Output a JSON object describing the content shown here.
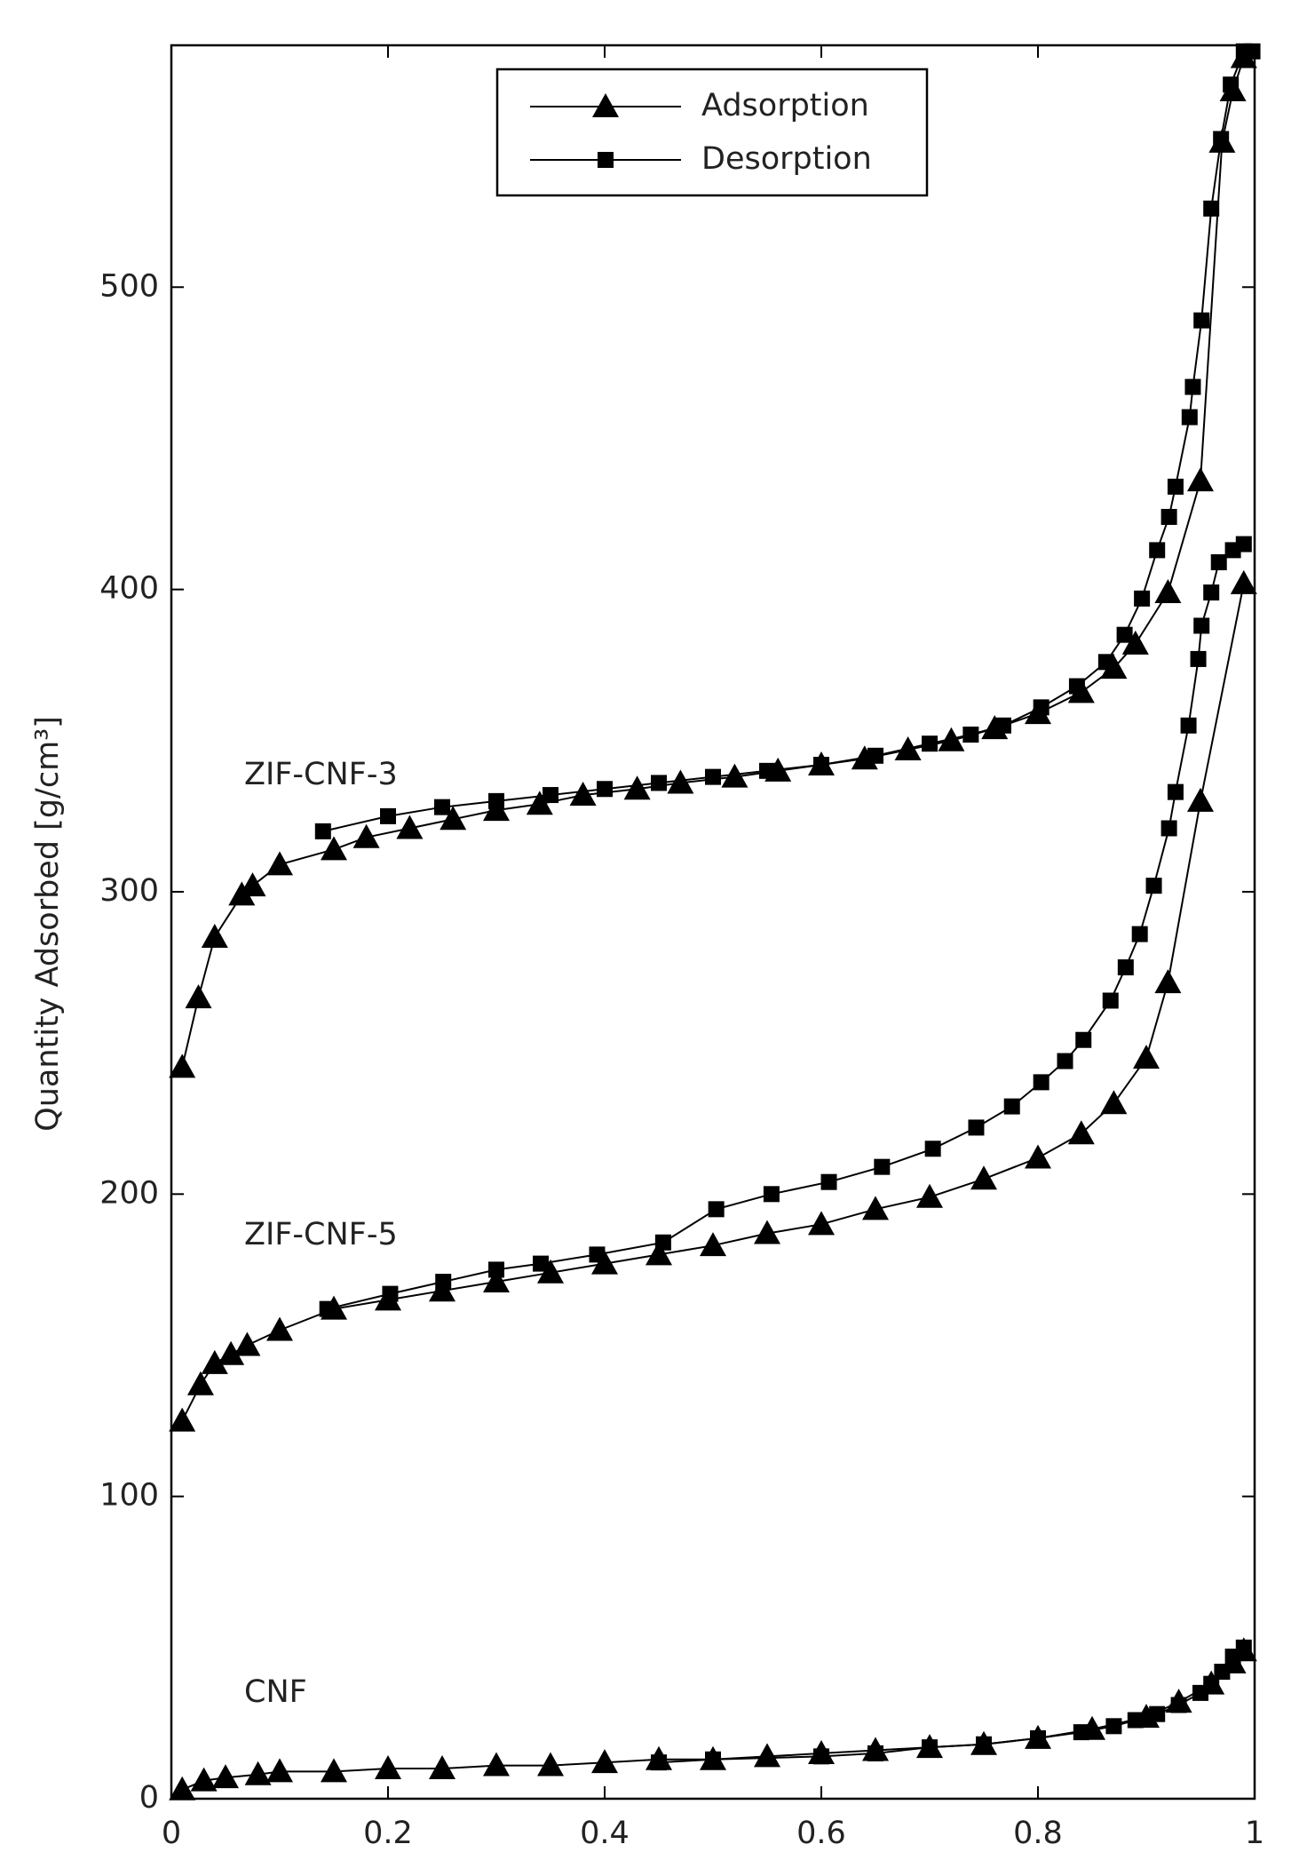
{
  "chart_data": {
    "type": "line",
    "ylabel": "Quantity Adsorbed [g/cm³]",
    "xlim": [
      0,
      1
    ],
    "xticks": [
      0,
      0.2,
      0.4,
      0.6,
      0.8,
      1
    ],
    "ylim": [
      0,
      580
    ],
    "yticks": [
      0,
      100,
      200,
      300,
      400,
      500
    ],
    "color": "#000000",
    "legend_position": "upper center",
    "legend": [
      {
        "name": "Adsorption",
        "marker": "triangle"
      },
      {
        "name": "Desorption",
        "marker": "square"
      }
    ],
    "samples": [
      {
        "label": "ZIF-CNF-3",
        "series": [
          {
            "marker": "triangle",
            "x": [
              0.01,
              0.025,
              0.04,
              0.065,
              0.075,
              0.1,
              0.15,
              0.18,
              0.22,
              0.26,
              0.3,
              0.34,
              0.38,
              0.43,
              0.47,
              0.52,
              0.56,
              0.6,
              0.64,
              0.68,
              0.72,
              0.76,
              0.8,
              0.84,
              0.87,
              0.89,
              0.92,
              0.95,
              0.97,
              0.98,
              0.99
            ],
            "values": [
              242,
              265,
              285,
              299,
              302,
              309,
              314,
              318,
              321,
              324,
              327,
              329,
              332,
              334,
              336,
              338,
              340,
              342,
              344,
              347,
              350,
              354,
              359,
              366,
              374,
              382,
              399,
              436,
              548,
              565,
              576
            ]
          },
          {
            "marker": "square",
            "x": [
              0.998,
              0.99,
              0.978,
              0.969,
              0.96,
              0.951,
              0.943,
              0.94,
              0.927,
              0.921,
              0.91,
              0.896,
              0.88,
              0.863,
              0.836,
              0.803,
              0.768,
              0.738,
              0.7,
              0.65,
              0.6,
              0.55,
              0.5,
              0.45,
              0.4,
              0.35,
              0.3,
              0.25,
              0.2,
              0.14
            ],
            "values": [
              578,
              578,
              567,
              549,
              526,
              489,
              467,
              457,
              434,
              424,
              413,
              397,
              385,
              376,
              368,
              361,
              355,
              352,
              349,
              345,
              342,
              340,
              338,
              336,
              334,
              332,
              330,
              328,
              325,
              320
            ]
          }
        ]
      },
      {
        "label": "ZIF-CNF-5",
        "series": [
          {
            "marker": "triangle",
            "x": [
              0.01,
              0.027,
              0.04,
              0.055,
              0.07,
              0.1,
              0.15,
              0.2,
              0.25,
              0.3,
              0.35,
              0.4,
              0.45,
              0.5,
              0.55,
              0.6,
              0.65,
              0.7,
              0.75,
              0.8,
              0.84,
              0.87,
              0.9,
              0.92,
              0.95,
              0.99
            ],
            "values": [
              125,
              137,
              144,
              147,
              150,
              155,
              162,
              165,
              168,
              171,
              174,
              177,
              180,
              183,
              187,
              190,
              195,
              199,
              205,
              212,
              220,
              230,
              245,
              270,
              330,
              402
            ]
          },
          {
            "marker": "square",
            "x": [
              0.99,
              0.98,
              0.967,
              0.96,
              0.951,
              0.948,
              0.939,
              0.927,
              0.921,
              0.907,
              0.894,
              0.881,
              0.867,
              0.842,
              0.825,
              0.803,
              0.776,
              0.743,
              0.703,
              0.656,
              0.607,
              0.554,
              0.503,
              0.454,
              0.393,
              0.341,
              0.3,
              0.251,
              0.202,
              0.144
            ],
            "values": [
              415,
              413,
              409,
              399,
              388,
              377,
              355,
              333,
              321,
              302,
              286,
              275,
              264,
              251,
              244,
              237,
              229,
              222,
              215,
              209,
              204,
              200,
              195,
              184,
              180,
              177,
              175,
              171,
              167,
              162
            ]
          }
        ]
      },
      {
        "label": "CNF",
        "series": [
          {
            "marker": "triangle",
            "x": [
              0.01,
              0.03,
              0.05,
              0.08,
              0.1,
              0.15,
              0.2,
              0.25,
              0.3,
              0.35,
              0.4,
              0.45,
              0.5,
              0.55,
              0.6,
              0.65,
              0.7,
              0.75,
              0.8,
              0.85,
              0.9,
              0.93,
              0.96,
              0.98,
              0.99
            ],
            "values": [
              3,
              6,
              7,
              8,
              9,
              9,
              10,
              10,
              11,
              11,
              12,
              13,
              13,
              14,
              15,
              16,
              17,
              18,
              20,
              23,
              27,
              32,
              38,
              45,
              49
            ]
          },
          {
            "marker": "square",
            "x": [
              0.99,
              0.98,
              0.97,
              0.96,
              0.95,
              0.93,
              0.91,
              0.89,
              0.87,
              0.84,
              0.8,
              0.75,
              0.7,
              0.65,
              0.6,
              0.5,
              0.45
            ],
            "values": [
              50,
              47,
              42,
              38,
              35,
              31,
              28,
              26,
              24,
              22,
              20,
              18,
              17,
              15,
              14,
              13,
              12
            ]
          }
        ]
      }
    ]
  }
}
